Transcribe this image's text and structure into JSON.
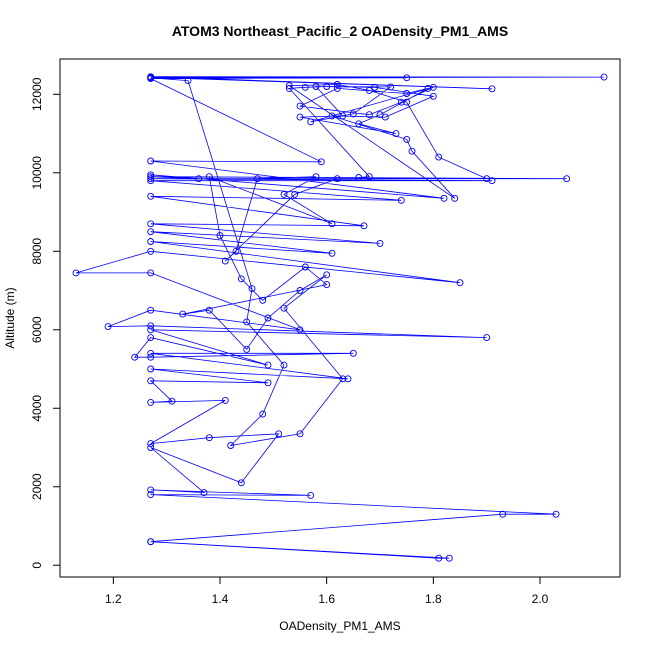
{
  "chart_data": {
    "type": "scatter",
    "title": "ATOM3 Northeast_Pacific_2 OADensity_PM1_AMS",
    "xlabel": "OADensity_PM1_AMS",
    "ylabel": "Altitude (m)",
    "xlim": [
      1.1,
      2.15
    ],
    "ylim": [
      -300,
      12900
    ],
    "xticks": [
      1.2,
      1.4,
      1.6,
      1.8,
      2.0
    ],
    "xtick_labels": [
      "1.2",
      "1.4",
      "1.6",
      "1.8",
      "2.0"
    ],
    "yticks": [
      0,
      2000,
      4000,
      6000,
      8000,
      10000,
      12000
    ],
    "ytick_labels": [
      "0",
      "2000",
      "4000",
      "6000",
      "8000",
      "10000",
      "12000"
    ],
    "color": "#0000ff",
    "marker": "open-circle",
    "connected": true,
    "x": [
      1.27,
      1.81,
      1.83,
      1.27,
      1.93,
      2.03,
      1.27,
      1.57,
      1.27,
      1.37,
      1.27,
      1.44,
      1.51,
      1.38,
      1.27,
      1.41,
      1.27,
      1.31,
      1.27,
      1.49,
      1.27,
      1.64,
      1.27,
      1.65,
      1.27,
      1.24,
      1.27,
      1.49,
      1.27,
      1.9,
      1.27,
      1.19,
      1.27,
      1.55,
      1.27,
      1.13,
      1.27,
      1.85,
      1.27,
      1.61,
      1.27,
      1.7,
      1.27,
      1.67,
      1.27,
      1.74,
      1.27,
      1.91,
      1.27,
      2.05,
      1.27,
      1.36,
      1.27,
      1.82,
      1.27,
      1.59,
      1.27,
      1.75,
      1.27,
      1.91,
      1.27,
      2.12,
      1.27,
      1.34,
      1.46,
      1.45,
      1.52,
      1.48,
      1.42,
      1.55,
      1.63,
      1.52,
      1.6,
      1.55,
      1.49,
      1.45,
      1.38,
      1.33,
      1.6,
      1.56,
      1.48,
      1.44,
      1.4,
      1.38,
      1.61,
      1.52,
      1.58,
      1.47,
      1.43,
      1.41,
      1.54,
      1.62,
      1.66,
      1.68,
      1.53,
      1.56,
      1.6,
      1.72,
      1.65,
      1.57,
      1.8,
      1.74,
      1.68,
      1.55,
      1.62,
      1.75,
      1.79,
      1.7,
      1.66,
      1.73,
      1.55,
      1.63,
      1.58,
      1.69,
      1.8,
      1.71,
      1.61,
      1.75,
      1.76,
      1.84,
      1.53,
      1.62,
      1.68,
      1.75,
      1.81,
      1.9
    ],
    "y": [
      600,
      180,
      180,
      600,
      1300,
      1300,
      1800,
      1780,
      1920,
      1850,
      3000,
      2100,
      3350,
      3250,
      3100,
      4200,
      4150,
      4180,
      4700,
      4650,
      5000,
      4750,
      5400,
      5400,
      5300,
      5300,
      5800,
      5100,
      6000,
      5800,
      6100,
      6080,
      6500,
      6000,
      7450,
      7450,
      8000,
      7200,
      8250,
      7950,
      8500,
      8200,
      8700,
      8650,
      9400,
      9300,
      9800,
      9800,
      9850,
      9850,
      9900,
      9850,
      9950,
      9350,
      10300,
      10280,
      12400,
      12420,
      12430,
      12140,
      12450,
      12440,
      12420,
      12350,
      7050,
      6200,
      5100,
      3850,
      3050,
      3350,
      4750,
      6550,
      7400,
      7000,
      6300,
      5500,
      6500,
      6400,
      7150,
      7600,
      6750,
      7300,
      8400,
      9900,
      8700,
      9450,
      9900,
      9850,
      8000,
      7750,
      9450,
      9850,
      9880,
      9900,
      12150,
      12180,
      12200,
      12190,
      11500,
      11300,
      12180,
      11800,
      11480,
      11700,
      12150,
      12020,
      12150,
      11480,
      11250,
      11000,
      11420,
      11450,
      12200,
      12180,
      11950,
      11420,
      11450,
      10850,
      10550,
      9350,
      12220,
      12250,
      12100,
      11800,
      10400,
      9850
    ]
  }
}
